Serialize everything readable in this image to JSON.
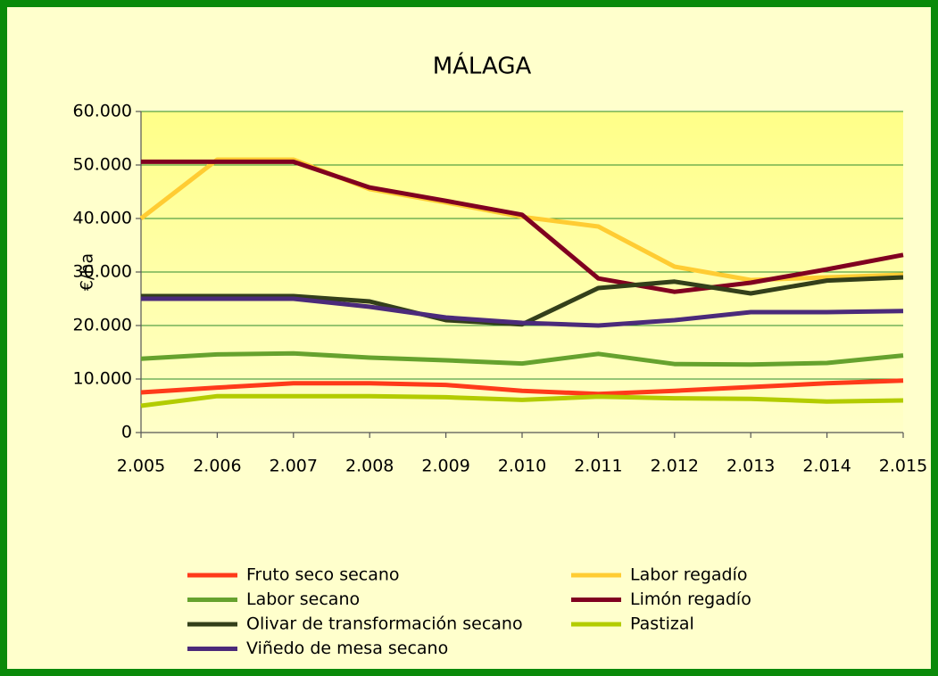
{
  "chart_data": {
    "type": "line",
    "title": "MÁLAGA",
    "y_label": "€/ha",
    "x": [
      {
        "value": 2005,
        "label": "2.005"
      },
      {
        "value": 2006,
        "label": "2.006"
      },
      {
        "value": 2007,
        "label": "2.007"
      },
      {
        "value": 2008,
        "label": "2.008"
      },
      {
        "value": 2009,
        "label": "2.009"
      },
      {
        "value": 2010,
        "label": "2.010"
      },
      {
        "value": 2011,
        "label": "2.011"
      },
      {
        "value": 2012,
        "label": "2.012"
      },
      {
        "value": 2013,
        "label": "2.013"
      },
      {
        "value": 2014,
        "label": "2.014"
      },
      {
        "value": 2015,
        "label": "2.015"
      }
    ],
    "xlim": [
      2005,
      2015
    ],
    "ylim": [
      0,
      60000
    ],
    "yticks": [
      0,
      {
        "value": 10000,
        "label": "10.000"
      },
      {
        "value": 20000,
        "label": "20.000"
      },
      {
        "value": 30000,
        "label": "30.000"
      },
      {
        "value": 40000,
        "label": "40.000"
      },
      {
        "value": 50000,
        "label": "50.000"
      },
      {
        "value": 60000,
        "label": "60.000"
      }
    ],
    "grid": true,
    "legend": "bottom",
    "series": [
      {
        "name": "Fruto seco secano",
        "color": "#ff3a1a",
        "values": [
          7500,
          8400,
          9200,
          9200,
          8900,
          7800,
          7200,
          7800,
          8500,
          9200,
          9700
        ]
      },
      {
        "name": "Labor regadío",
        "color": "#ffcc33",
        "values": [
          40000,
          51000,
          51000,
          45500,
          43000,
          40300,
          38500,
          31000,
          28500,
          29000,
          29500
        ]
      },
      {
        "name": "Labor secano",
        "color": "#66a22e",
        "values": [
          13800,
          14600,
          14800,
          14000,
          13500,
          12900,
          14700,
          12800,
          12700,
          13000,
          14400
        ]
      },
      {
        "name": "Limón regadío",
        "color": "#800020",
        "values": [
          50600,
          50600,
          50600,
          45800,
          43300,
          40700,
          28800,
          26300,
          28000,
          30500,
          33200
        ]
      },
      {
        "name": "Olivar de transformación secano",
        "color": "#333f1a",
        "values": [
          25500,
          25500,
          25500,
          24500,
          21000,
          20200,
          27000,
          28200,
          26000,
          28400,
          29000
        ]
      },
      {
        "name": "Pastizal",
        "color": "#b3cc00",
        "values": [
          5000,
          6800,
          6800,
          6800,
          6600,
          6100,
          6700,
          6400,
          6300,
          5800,
          6000
        ]
      },
      {
        "name": "Viñedo de mesa secano",
        "color": "#4b2a7a",
        "values": [
          25000,
          25000,
          25000,
          23500,
          21500,
          20500,
          20000,
          21000,
          22500,
          22500,
          22700
        ]
      }
    ]
  }
}
